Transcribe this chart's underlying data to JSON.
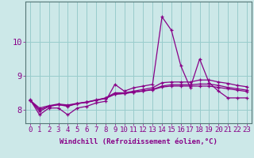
{
  "xlabel": "Windchill (Refroidissement éolien,°C)",
  "background_color": "#cce8e8",
  "line_color": "#880088",
  "grid_color": "#99cccc",
  "x_data": [
    0,
    1,
    2,
    3,
    4,
    5,
    6,
    7,
    8,
    9,
    10,
    11,
    12,
    13,
    14,
    15,
    16,
    17,
    18,
    19,
    20,
    21,
    22,
    23
  ],
  "series1": [
    8.3,
    7.85,
    8.05,
    8.05,
    7.85,
    8.05,
    8.1,
    8.2,
    8.25,
    8.75,
    8.55,
    8.65,
    8.7,
    8.75,
    10.75,
    10.35,
    9.3,
    8.65,
    9.5,
    8.8,
    8.55,
    8.35,
    8.35,
    8.35
  ],
  "series2": [
    8.28,
    7.95,
    8.1,
    8.15,
    8.1,
    8.18,
    8.22,
    8.28,
    8.35,
    8.5,
    8.5,
    8.55,
    8.6,
    8.65,
    8.8,
    8.82,
    8.82,
    8.82,
    8.88,
    8.88,
    8.82,
    8.78,
    8.72,
    8.68
  ],
  "series3": [
    8.28,
    8.0,
    8.1,
    8.15,
    8.12,
    8.18,
    8.22,
    8.28,
    8.33,
    8.46,
    8.48,
    8.52,
    8.56,
    8.6,
    8.7,
    8.74,
    8.74,
    8.74,
    8.76,
    8.76,
    8.72,
    8.66,
    8.62,
    8.58
  ],
  "series4": [
    8.28,
    8.05,
    8.12,
    8.17,
    8.14,
    8.19,
    8.23,
    8.29,
    8.34,
    8.46,
    8.48,
    8.52,
    8.55,
    8.59,
    8.67,
    8.7,
    8.7,
    8.7,
    8.7,
    8.7,
    8.66,
    8.62,
    8.58,
    8.54
  ],
  "ylim": [
    7.6,
    11.2
  ],
  "xlim": [
    -0.5,
    23.5
  ],
  "yticks": [
    8,
    9,
    10
  ],
  "xticks": [
    0,
    1,
    2,
    3,
    4,
    5,
    6,
    7,
    8,
    9,
    10,
    11,
    12,
    13,
    14,
    15,
    16,
    17,
    18,
    19,
    20,
    21,
    22,
    23
  ],
  "xlabel_fontsize": 6.5,
  "tick_fontsize": 6.5
}
